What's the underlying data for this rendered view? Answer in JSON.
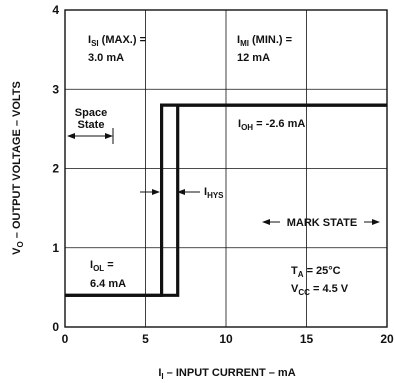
{
  "chart_data": {
    "type": "line",
    "xlabel_main": "I",
    "xlabel_sub": "I",
    "xlabel_rest": " – INPUT CURRENT – mA",
    "ylabel_main": "V",
    "ylabel_sub": "O",
    "ylabel_rest": " – OUTPUT VOLTAGE – VOLTS",
    "xlim": [
      0,
      20
    ],
    "ylim": [
      0,
      4
    ],
    "x_ticks": [
      "0",
      "5",
      "10",
      "15",
      "20"
    ],
    "y_ticks": [
      "0",
      "1",
      "2",
      "3",
      "4"
    ],
    "grid": true,
    "series": [
      {
        "x": [
          0,
          6,
          6,
          20
        ],
        "y": [
          0.4,
          0.4,
          2.8,
          2.8
        ]
      },
      {
        "x": [
          0,
          7,
          7,
          20
        ],
        "y": [
          0.4,
          0.4,
          2.8,
          2.8
        ]
      }
    ],
    "annotations": {
      "isi": {
        "main": "I",
        "sub": "SI",
        "rest": " (MAX.) =",
        "value": "3.0 mA"
      },
      "imi": {
        "main": "I",
        "sub": "MI",
        "rest": " (MIN.) =",
        "value": "12 mA"
      },
      "space_state_1": "Space",
      "space_state_2": "State",
      "ioh": {
        "main": "I",
        "sub": "OH",
        "rest": " = -2.6 mA"
      },
      "ihys": {
        "main": "I",
        "sub": "HYS"
      },
      "mark_state": "MARK STATE",
      "iol": {
        "main": "I",
        "sub": "OL",
        "rest": " =",
        "value": "6.4 mA"
      },
      "ta": {
        "main": "T",
        "sub": "A",
        "rest": " = 25°C"
      },
      "vcc": {
        "main": "V",
        "sub": "CC",
        "rest": " = 4.5 V"
      }
    }
  }
}
